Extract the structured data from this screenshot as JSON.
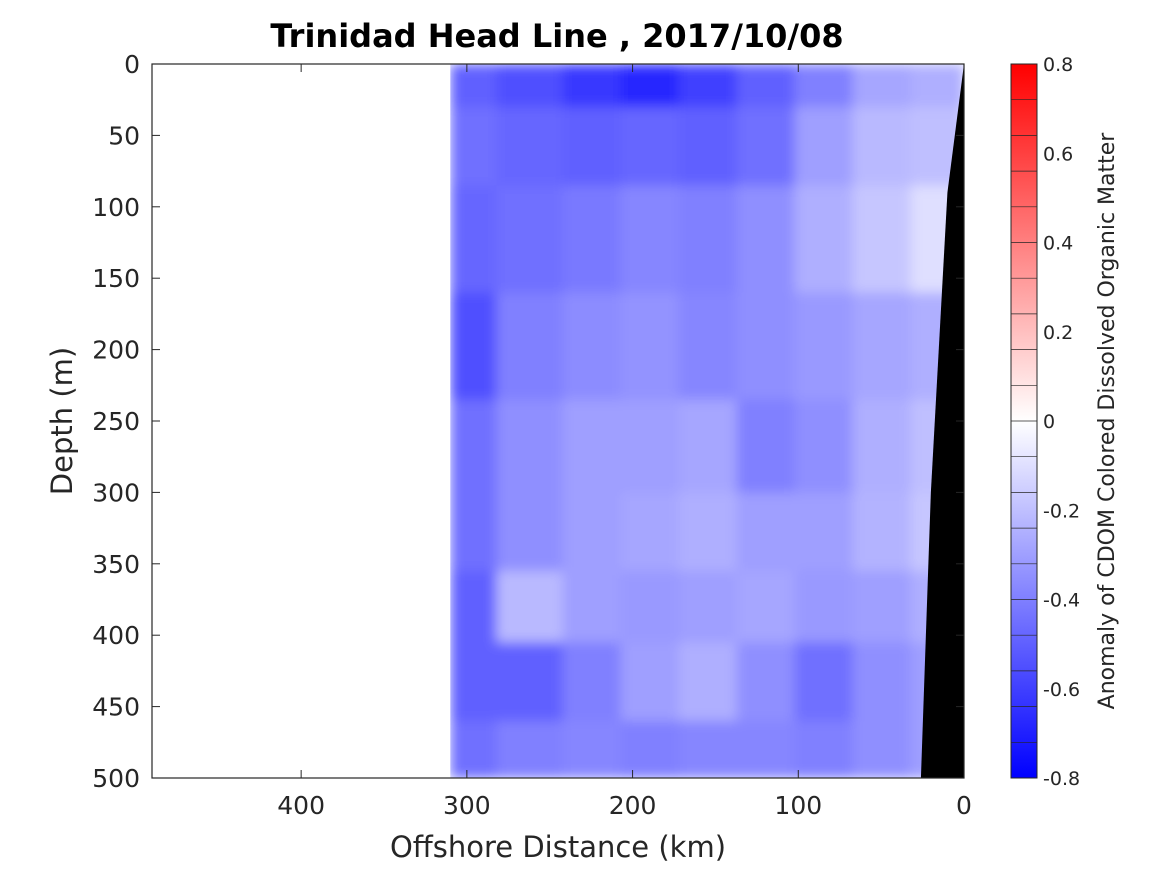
{
  "chart_data": {
    "type": "heatmap",
    "title": "Trinidad Head Line , 2017/10/08",
    "xlabel": "Offshore Distance (km)",
    "ylabel": "Depth (m)",
    "x_reversed": true,
    "y_reversed": true,
    "xlim": [
      0,
      490
    ],
    "ylim": [
      0,
      500
    ],
    "xticks": [
      400,
      300,
      200,
      100,
      0
    ],
    "yticks": [
      0,
      50,
      100,
      150,
      200,
      250,
      300,
      350,
      400,
      450,
      500
    ],
    "colorbar": {
      "label": "Anomaly of CDOM Colored Dissolved Organic Matter",
      "range": [
        -0.8,
        0.8
      ],
      "ticks": [
        0.8,
        0.6,
        0.4,
        0.2,
        0,
        -0.2,
        -0.4,
        -0.6,
        -0.8
      ],
      "tick_labels": [
        "0.8",
        "0.6",
        "0.4",
        "0.2",
        "0",
        "-0.2",
        "-0.4",
        "-0.6",
        "-0.8"
      ],
      "levels": 20,
      "colormap": "blue-white-red",
      "color_low": "#0000ff",
      "color_mid": "#ffffff",
      "color_high": "#ff0000"
    },
    "data_extent_km": [
      0,
      310
    ],
    "bathymetry": {
      "color": "#000000",
      "bottom_profile": [
        {
          "depth": 0,
          "distance": 0
        },
        {
          "depth": 90,
          "distance": 10
        },
        {
          "depth": 300,
          "distance": 20
        },
        {
          "depth": 500,
          "distance": 26
        }
      ]
    },
    "anomaly_field": [
      {
        "depth": 10,
        "values": [
          -0.25,
          -0.28,
          -0.4,
          -0.5,
          -0.6,
          -0.68,
          -0.62,
          -0.55,
          -0.5
        ]
      },
      {
        "depth": 50,
        "values": [
          -0.2,
          -0.22,
          -0.3,
          -0.45,
          -0.5,
          -0.48,
          -0.5,
          -0.48,
          -0.45
        ]
      },
      {
        "depth": 120,
        "values": [
          -0.1,
          -0.18,
          -0.25,
          -0.35,
          -0.4,
          -0.38,
          -0.42,
          -0.45,
          -0.48
        ]
      },
      {
        "depth": 200,
        "values": [
          -0.25,
          -0.28,
          -0.32,
          -0.35,
          -0.38,
          -0.34,
          -0.36,
          -0.4,
          -0.55
        ]
      },
      {
        "depth": 270,
        "values": [
          -0.2,
          -0.25,
          -0.35,
          -0.4,
          -0.28,
          -0.3,
          -0.3,
          -0.35,
          -0.45
        ]
      },
      {
        "depth": 330,
        "values": [
          -0.18,
          -0.24,
          -0.3,
          -0.3,
          -0.25,
          -0.28,
          -0.3,
          -0.35,
          -0.45
        ]
      },
      {
        "depth": 380,
        "values": [
          -0.25,
          -0.3,
          -0.32,
          -0.28,
          -0.3,
          -0.32,
          -0.3,
          -0.22,
          -0.5
        ]
      },
      {
        "depth": 430,
        "values": [
          -0.3,
          -0.35,
          -0.45,
          -0.35,
          -0.25,
          -0.3,
          -0.4,
          -0.5,
          -0.5
        ]
      },
      {
        "depth": 490,
        "values": [
          -0.3,
          -0.35,
          -0.4,
          -0.38,
          -0.38,
          -0.4,
          -0.38,
          -0.4,
          -0.45
        ]
      }
    ],
    "anomaly_field_distances": [
      15,
      50,
      85,
      120,
      155,
      190,
      225,
      260,
      305
    ]
  }
}
